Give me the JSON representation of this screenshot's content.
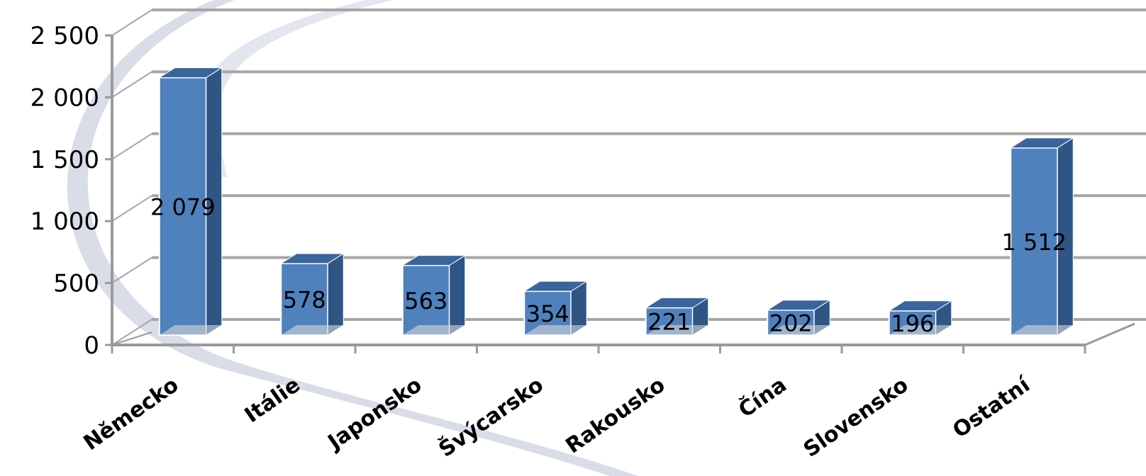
{
  "chart_data": {
    "type": "bar",
    "title": "",
    "xlabel": "",
    "ylabel": "",
    "categories": [
      "Německo",
      "Itálie",
      "Japonsko",
      "Švýcarsko",
      "Rakousko",
      "Čína",
      "Slovensko",
      "Ostatní"
    ],
    "values": [
      2079,
      578,
      563,
      354,
      221,
      202,
      196,
      1512
    ],
    "data_labels": [
      "2 079",
      "578",
      "563",
      "354",
      "221",
      "202",
      "196",
      "1 512"
    ],
    "ylim": [
      0,
      2500
    ],
    "yticks": [
      0,
      500,
      1000,
      1500,
      2000,
      2500
    ],
    "ytick_labels": [
      "0",
      "500",
      "1 000",
      "1 500",
      "2 000",
      "2 500"
    ],
    "grid": true,
    "legend": "none",
    "style": "3d-column",
    "colors": {
      "bar_front": "#4f81bd",
      "bar_side": "#2f5585",
      "bar_top": "#3a659c",
      "grid": "#a6a6a6",
      "axis": "#9a9a9a"
    }
  }
}
